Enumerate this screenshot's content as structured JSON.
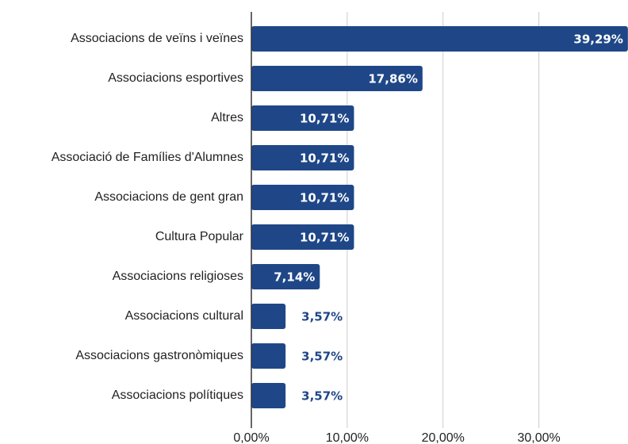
{
  "chart_data": {
    "type": "bar",
    "orientation": "horizontal",
    "categories": [
      "Associacions de veïns i veïnes",
      "Associacions esportives",
      "Altres",
      "Associació de Famílies d'Alumnes",
      "Associacions de gent gran",
      "Cultura Popular",
      "Associacions religioses",
      "Associacions cultural",
      "Associacions gastronòmiques",
      "Associacions polítiques"
    ],
    "values": [
      39.29,
      17.86,
      10.71,
      10.71,
      10.71,
      10.71,
      7.14,
      3.57,
      3.57,
      3.57
    ],
    "value_labels": [
      "39,29%",
      "17,86%",
      "10,71%",
      "10,71%",
      "10,71%",
      "10,71%",
      "7,14%",
      "3,57%",
      "3,57%",
      "3,57%"
    ],
    "color": "#1f4788",
    "xlim": [
      0,
      39.3
    ],
    "xticks": [
      {
        "value": 0,
        "label": "0,00%"
      },
      {
        "value": 10,
        "label": "10,00%"
      },
      {
        "value": 20,
        "label": "20,00%"
      },
      {
        "value": 30,
        "label": "30,00%"
      }
    ],
    "grid": true
  }
}
